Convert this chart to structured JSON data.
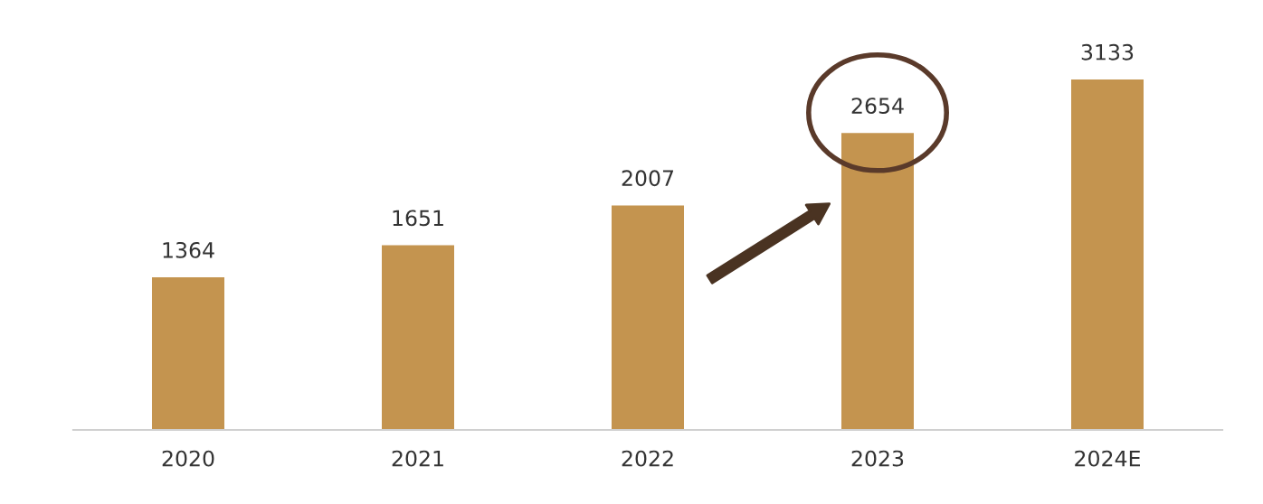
{
  "chart_data": {
    "type": "bar",
    "categories": [
      "2020",
      "2021",
      "2022",
      "2023",
      "2024E"
    ],
    "values": [
      1364,
      1651,
      2007,
      2654,
      3133
    ],
    "color": "#c4944f",
    "data_labels": true,
    "grid": false,
    "legend": false
  }
}
